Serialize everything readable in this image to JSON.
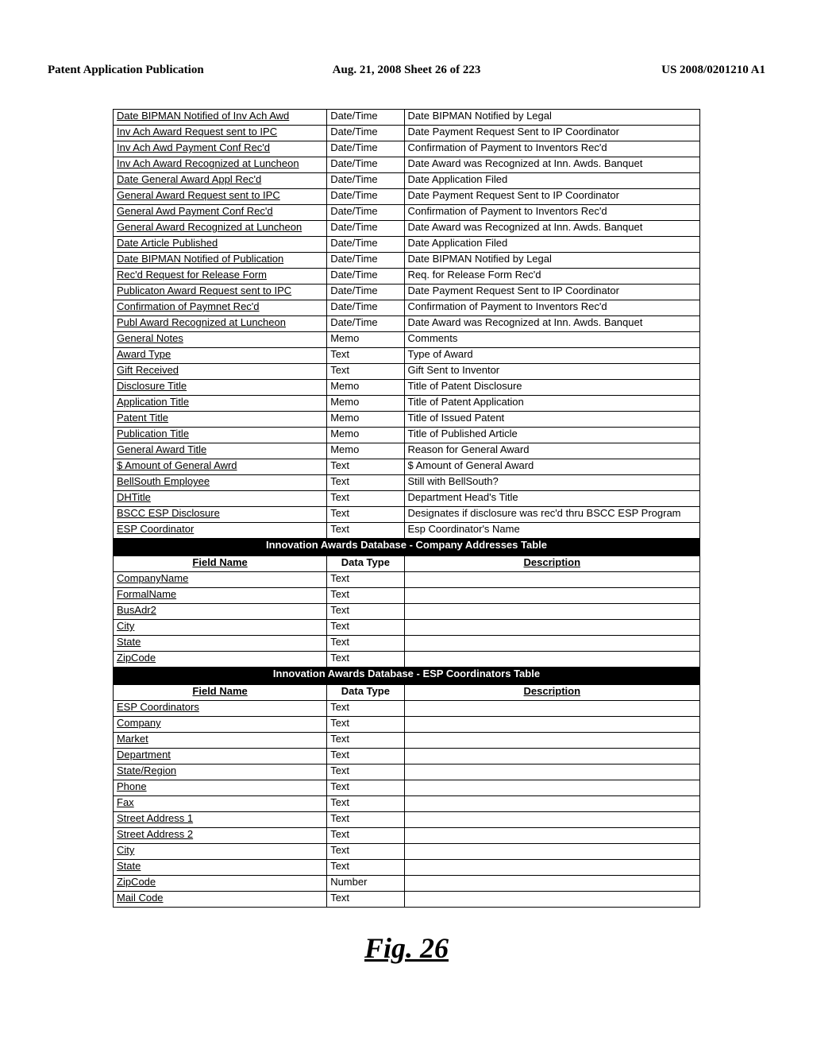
{
  "header": {
    "left": "Patent Application Publication",
    "center": "Aug. 21, 2008  Sheet 26 of 223",
    "right": "US 2008/0201210 A1"
  },
  "table1": {
    "rows": [
      [
        "Date BIPMAN Notified of Inv Ach Awd",
        "Date/Time",
        "Date BIPMAN Notified by Legal"
      ],
      [
        "Inv Ach Award Request sent to IPC",
        "Date/Time",
        "Date Payment Request Sent to IP Coordinator"
      ],
      [
        "Inv Ach Awd Payment Conf Rec'd",
        "Date/Time",
        "Confirmation of Payment to Inventors Rec'd"
      ],
      [
        "Inv Ach Award Recognized at Luncheon",
        "Date/Time",
        "Date Award was Recognized at Inn. Awds. Banquet"
      ],
      [
        "Date General Award Appl Rec'd",
        "Date/Time",
        "Date Application Filed"
      ],
      [
        "General Award Request sent to IPC",
        "Date/Time",
        "Date Payment Request Sent to IP Coordinator"
      ],
      [
        "General Awd Payment Conf Rec'd",
        "Date/Time",
        "Confirmation of Payment to Inventors Rec'd"
      ],
      [
        "General Award Recognized at Luncheon",
        "Date/Time",
        "Date Award was Recognized at Inn. Awds. Banquet"
      ],
      [
        "Date Article Published",
        "Date/Time",
        "Date Application Filed"
      ],
      [
        "Date BIPMAN Notified of Publication",
        "Date/Time",
        "Date BIPMAN Notified by Legal"
      ],
      [
        "Rec'd Request for Release Form",
        "Date/Time",
        "Req. for Release Form Rec'd"
      ],
      [
        "Publicaton Award Request sent to IPC",
        "Date/Time",
        "Date Payment Request Sent to IP Coordinator"
      ],
      [
        "Confirmation of Paymnet Rec'd",
        "Date/Time",
        "Confirmation of Payment to Inventors Rec'd"
      ],
      [
        "Publ Award Recognized at Luncheon",
        "Date/Time",
        "Date Award was Recognized at Inn. Awds. Banquet"
      ],
      [
        "General Notes",
        "Memo",
        "Comments"
      ],
      [
        "Award Type",
        "Text",
        "Type of Award"
      ],
      [
        "Gift Received",
        "Text",
        "Gift Sent to Inventor"
      ],
      [
        "Disclosure Title",
        "Memo",
        "Title of Patent Disclosure"
      ],
      [
        "Application Title",
        "Memo",
        "Title of Patent Application"
      ],
      [
        "Patent Title",
        "Memo",
        "Title of Issued Patent"
      ],
      [
        "Publication Title",
        "Memo",
        "Title of Published Article"
      ],
      [
        "General Award Title",
        "Memo",
        "Reason for General Award"
      ],
      [
        "$ Amount of General Awrd",
        "Text",
        "$ Amount of General Award"
      ],
      [
        "BellSouth Employee",
        "Text",
        "Still with BellSouth?"
      ],
      [
        "DHTitle",
        "Text",
        "Department Head's Title"
      ],
      [
        "BSCC ESP Disclosure",
        "Text",
        "Designates if disclosure was rec'd thru BSCC ESP Program"
      ],
      [
        "ESP Coordinator",
        "Text",
        "Esp Coordinator's Name"
      ]
    ]
  },
  "section2": {
    "title": "Innovation Awards Database - Company Addresses Table",
    "headers": [
      "Field Name",
      "Data Type",
      "Description"
    ],
    "rows": [
      [
        "CompanyName",
        "Text",
        ""
      ],
      [
        "FormalName",
        "Text",
        ""
      ],
      [
        "BusAdr2",
        "Text",
        ""
      ],
      [
        "City",
        "Text",
        ""
      ],
      [
        "State",
        "Text",
        ""
      ],
      [
        "ZipCode",
        "Text",
        ""
      ]
    ]
  },
  "section3": {
    "title": "Innovation Awards Database - ESP Coordinators Table",
    "headers": [
      "Field Name",
      "Data Type",
      "Description"
    ],
    "rows": [
      [
        "ESP Coordinators",
        "Text",
        ""
      ],
      [
        "Company",
        "Text",
        ""
      ],
      [
        "Market",
        "Text",
        ""
      ],
      [
        "Department",
        "Text",
        ""
      ],
      [
        "State/Region",
        "Text",
        ""
      ],
      [
        "Phone",
        "Text",
        ""
      ],
      [
        "Fax",
        "Text",
        ""
      ],
      [
        "Street Address 1",
        "Text",
        ""
      ],
      [
        "Street Address 2",
        "Text",
        ""
      ],
      [
        "City",
        "Text",
        ""
      ],
      [
        "State",
        "Text",
        ""
      ],
      [
        "ZipCode",
        "Number",
        ""
      ],
      [
        "Mail Code",
        "Text",
        ""
      ]
    ]
  },
  "figure_label": "Fig. 26"
}
